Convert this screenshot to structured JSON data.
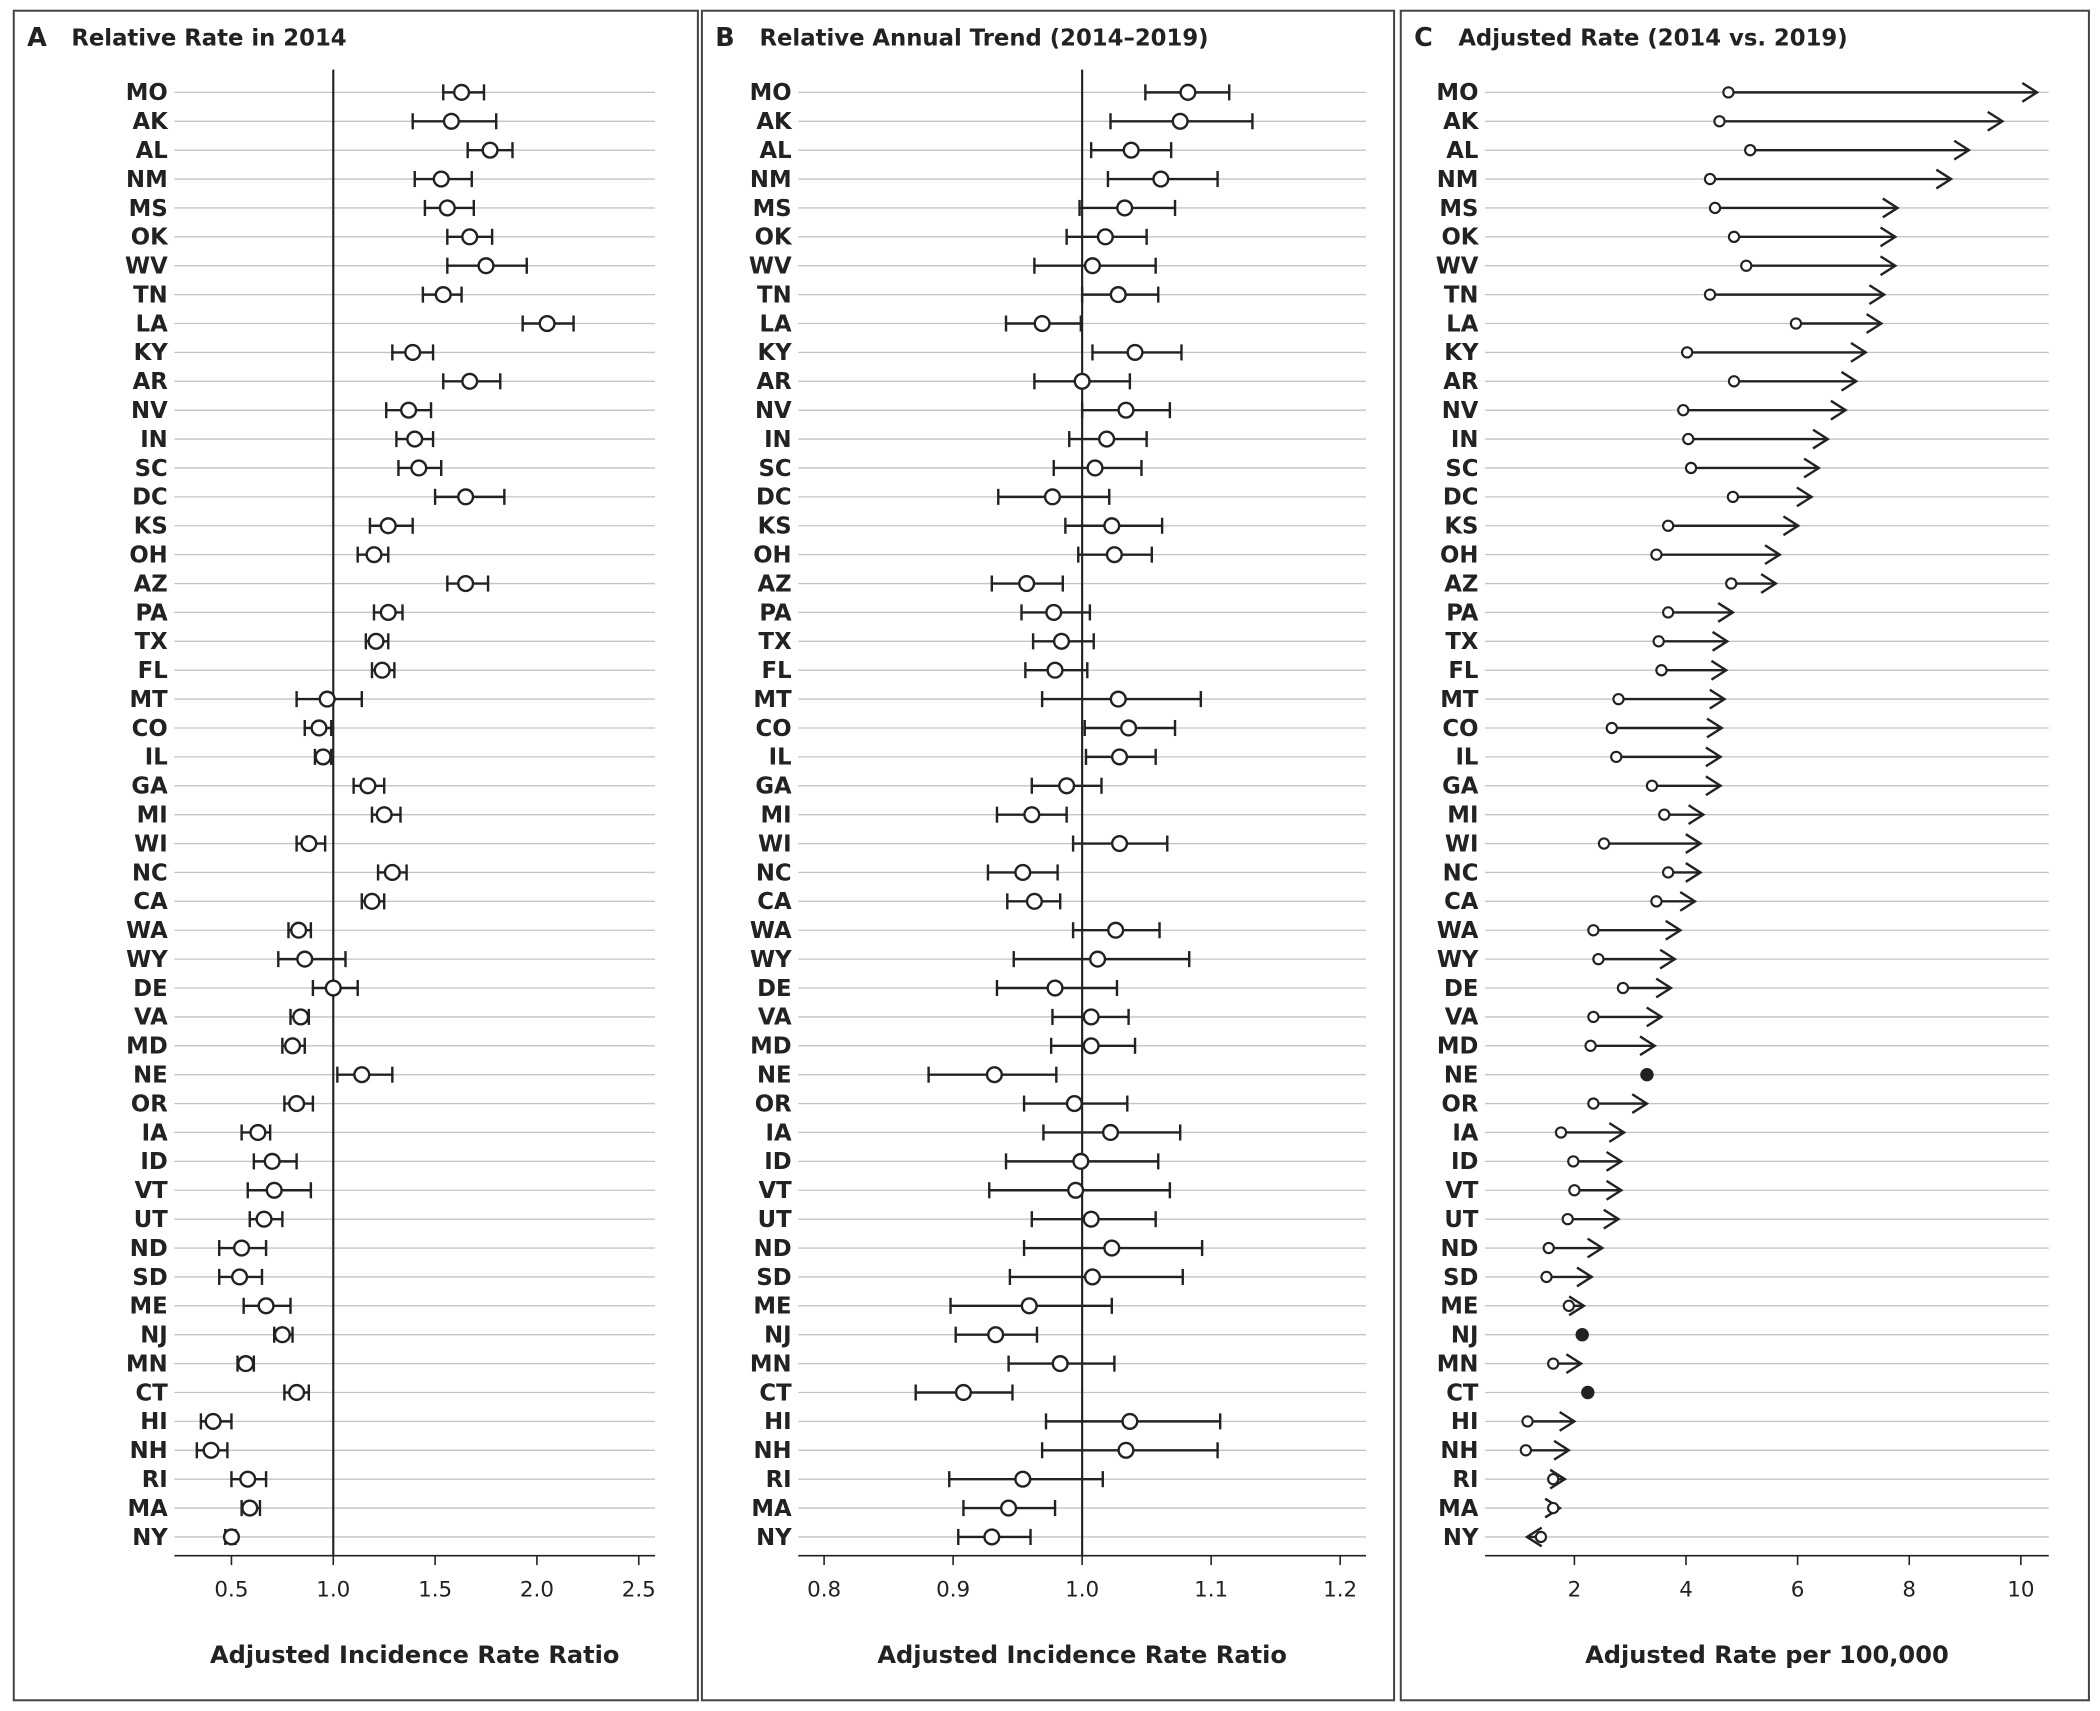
{
  "chart_data": [
    {
      "type": "forest",
      "panel_label": "A",
      "title": "Relative Rate in 2014",
      "x_label": "Adjusted Incidence Rate Ratio",
      "categories": [
        "MO",
        "AK",
        "AL",
        "NM",
        "MS",
        "OK",
        "WV",
        "TN",
        "LA",
        "KY",
        "AR",
        "NV",
        "IN",
        "SC",
        "DC",
        "KS",
        "OH",
        "AZ",
        "PA",
        "TX",
        "FL",
        "MT",
        "CO",
        "IL",
        "GA",
        "MI",
        "WI",
        "NC",
        "CA",
        "WA",
        "WY",
        "DE",
        "VA",
        "MD",
        "NE",
        "OR",
        "IA",
        "ID",
        "VT",
        "UT",
        "ND",
        "SD",
        "ME",
        "NJ",
        "MN",
        "CT",
        "HI",
        "NH",
        "RI",
        "MA",
        "NY"
      ],
      "values": [
        1.63,
        1.58,
        1.77,
        1.53,
        1.56,
        1.67,
        1.75,
        1.54,
        2.05,
        1.39,
        1.67,
        1.37,
        1.4,
        1.42,
        1.65,
        1.27,
        1.2,
        1.65,
        1.27,
        1.21,
        1.24,
        0.97,
        0.93,
        0.95,
        1.17,
        1.25,
        0.88,
        1.29,
        1.19,
        0.83,
        0.86,
        1.0,
        0.84,
        0.8,
        1.14,
        0.82,
        0.63,
        0.7,
        0.71,
        0.66,
        0.55,
        0.54,
        0.67,
        0.75,
        0.57,
        0.82,
        0.41,
        0.4,
        0.58,
        0.59,
        0.5
      ],
      "lower": [
        1.54,
        1.39,
        1.66,
        1.4,
        1.45,
        1.56,
        1.56,
        1.44,
        1.93,
        1.29,
        1.54,
        1.26,
        1.31,
        1.32,
        1.5,
        1.18,
        1.12,
        1.56,
        1.2,
        1.16,
        1.19,
        0.82,
        0.86,
        0.91,
        1.1,
        1.19,
        0.82,
        1.22,
        1.14,
        0.78,
        0.73,
        0.9,
        0.79,
        0.75,
        1.02,
        0.76,
        0.55,
        0.61,
        0.58,
        0.59,
        0.44,
        0.44,
        0.56,
        0.71,
        0.53,
        0.76,
        0.35,
        0.33,
        0.5,
        0.55,
        0.47
      ],
      "upper": [
        1.74,
        1.8,
        1.88,
        1.68,
        1.69,
        1.78,
        1.95,
        1.63,
        2.18,
        1.49,
        1.82,
        1.48,
        1.49,
        1.53,
        1.84,
        1.39,
        1.27,
        1.76,
        1.34,
        1.27,
        1.3,
        1.14,
        0.99,
        0.99,
        1.25,
        1.33,
        0.96,
        1.36,
        1.25,
        0.89,
        1.06,
        1.12,
        0.88,
        0.86,
        1.29,
        0.9,
        0.69,
        0.82,
        0.89,
        0.75,
        0.67,
        0.65,
        0.79,
        0.8,
        0.61,
        0.88,
        0.5,
        0.48,
        0.67,
        0.64,
        0.52
      ],
      "reference_line": 1,
      "xlim": [
        0.22,
        2.58
      ],
      "xticks": [
        0.5,
        {
          "value": 1,
          "label": "1.0"
        },
        1.5,
        {
          "value": 2,
          "label": "2.0"
        },
        2.5
      ]
    },
    {
      "type": "forest",
      "panel_label": "B",
      "title": "Relative Annual Trend (2014–2019)",
      "x_label": "Adjusted Incidence Rate Ratio",
      "categories": [
        "MO",
        "AK",
        "AL",
        "NM",
        "MS",
        "OK",
        "WV",
        "TN",
        "LA",
        "KY",
        "AR",
        "NV",
        "IN",
        "SC",
        "DC",
        "KS",
        "OH",
        "AZ",
        "PA",
        "TX",
        "FL",
        "MT",
        "CO",
        "IL",
        "GA",
        "MI",
        "WI",
        "NC",
        "CA",
        "WA",
        "WY",
        "DE",
        "VA",
        "MD",
        "NE",
        "OR",
        "IA",
        "ID",
        "VT",
        "UT",
        "ND",
        "SD",
        "ME",
        "NJ",
        "MN",
        "CT",
        "HI",
        "NH",
        "RI",
        "MA",
        "NY"
      ],
      "values": [
        1.082,
        1.076,
        1.038,
        1.061,
        1.033,
        1.018,
        1.008,
        1.028,
        0.969,
        1.041,
        1.0,
        1.034,
        1.019,
        1.01,
        0.977,
        1.023,
        1.025,
        0.957,
        0.978,
        0.984,
        0.979,
        1.028,
        1.036,
        1.029,
        0.988,
        0.961,
        1.029,
        0.954,
        0.963,
        1.026,
        1.012,
        0.979,
        1.007,
        1.007,
        0.932,
        0.994,
        1.022,
        0.999,
        0.995,
        1.007,
        1.023,
        1.008,
        0.959,
        0.933,
        0.983,
        0.908,
        1.037,
        1.034,
        0.954,
        0.943,
        0.93
      ],
      "lower": [
        1.049,
        1.022,
        1.007,
        1.02,
        0.998,
        0.988,
        0.963,
        1.0,
        0.941,
        1.008,
        0.963,
        1.0,
        0.99,
        0.978,
        0.935,
        0.987,
        0.997,
        0.93,
        0.953,
        0.962,
        0.956,
        0.969,
        1.002,
        1.003,
        0.961,
        0.934,
        0.993,
        0.927,
        0.942,
        0.993,
        0.947,
        0.934,
        0.977,
        0.976,
        0.881,
        0.955,
        0.97,
        0.941,
        0.928,
        0.961,
        0.955,
        0.944,
        0.898,
        0.902,
        0.943,
        0.871,
        0.972,
        0.969,
        0.897,
        0.908,
        0.904
      ],
      "upper": [
        1.114,
        1.132,
        1.069,
        1.105,
        1.072,
        1.05,
        1.057,
        1.059,
        0.999,
        1.077,
        1.037,
        1.068,
        1.05,
        1.046,
        1.021,
        1.062,
        1.054,
        0.985,
        1.006,
        1.009,
        1.004,
        1.092,
        1.072,
        1.057,
        1.015,
        0.988,
        1.066,
        0.981,
        0.983,
        1.06,
        1.083,
        1.027,
        1.036,
        1.041,
        0.98,
        1.035,
        1.076,
        1.059,
        1.068,
        1.057,
        1.093,
        1.078,
        1.023,
        0.965,
        1.025,
        0.946,
        1.107,
        1.105,
        1.016,
        0.979,
        0.96
      ],
      "reference_line": 1,
      "xlim": [
        0.78,
        1.22
      ],
      "xticks": [
        0.8,
        0.9,
        {
          "value": 1,
          "label": "1.0"
        },
        1.1,
        1.2
      ]
    },
    {
      "type": "arrow",
      "panel_label": "C",
      "title": "Adjusted Rate (2014 vs. 2019)",
      "x_label": "Adjusted Rate per 100,000",
      "categories": [
        "MO",
        "AK",
        "AL",
        "NM",
        "MS",
        "OK",
        "WV",
        "TN",
        "LA",
        "KY",
        "AR",
        "NV",
        "IN",
        "SC",
        "DC",
        "KS",
        "OH",
        "AZ",
        "PA",
        "TX",
        "FL",
        "MT",
        "CO",
        "IL",
        "GA",
        "MI",
        "WI",
        "NC",
        "CA",
        "WA",
        "WY",
        "DE",
        "VA",
        "MD",
        "NE",
        "OR",
        "IA",
        "ID",
        "VT",
        "UT",
        "ND",
        "SD",
        "ME",
        "NJ",
        "MN",
        "CT",
        "HI",
        "NH",
        "RI",
        "MA",
        "NY"
      ],
      "start_values": [
        4.76,
        4.6,
        5.15,
        4.43,
        4.52,
        4.86,
        5.08,
        4.43,
        5.97,
        4.02,
        4.86,
        3.95,
        4.04,
        4.09,
        4.84,
        3.68,
        3.47,
        4.81,
        3.68,
        3.51,
        3.56,
        2.79,
        2.67,
        2.75,
        3.39,
        3.61,
        2.53,
        3.68,
        3.47,
        2.34,
        2.43,
        2.87,
        2.34,
        2.29,
        3.3,
        2.34,
        1.76,
        1.98,
        2.0,
        1.88,
        1.54,
        1.5,
        1.9,
        2.12,
        1.62,
        2.28,
        1.16,
        1.13,
        1.62,
        1.62,
        1.4
      ],
      "end_values": [
        10.29,
        9.67,
        9.07,
        8.75,
        7.79,
        7.75,
        7.75,
        7.55,
        7.5,
        7.22,
        7.05,
        6.86,
        6.54,
        6.38,
        6.25,
        6.01,
        5.68,
        5.61,
        4.84,
        4.74,
        4.72,
        4.69,
        4.64,
        4.62,
        4.62,
        4.31,
        4.26,
        4.26,
        4.16,
        3.9,
        3.8,
        3.73,
        3.56,
        3.44,
        3.3,
        3.3,
        2.89,
        2.84,
        2.84,
        2.79,
        2.5,
        2.31,
        2.17,
        2.14,
        2.12,
        2.24,
        2.0,
        1.9,
        1.83,
        1.74,
        1.15
      ],
      "xlim": [
        0.4,
        10.5
      ],
      "xticks": [
        2,
        4,
        6,
        8,
        10
      ]
    }
  ]
}
